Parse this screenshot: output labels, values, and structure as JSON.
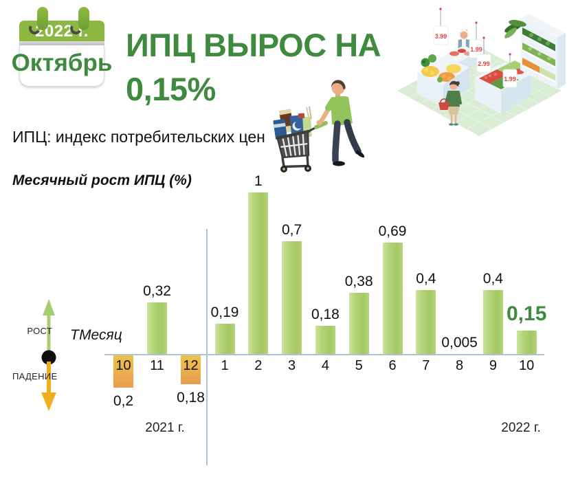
{
  "calendar": {
    "year_label": "2022 г.",
    "month_label": "Октябрь"
  },
  "header": {
    "title_line1": "ИПЦ ВЫРОС НА",
    "title_line2": "0,15%",
    "subtitle": "ИПЦ: индекс потребительских цен"
  },
  "chart": {
    "title": "Месячный рост ИПЦ (%)",
    "axis_label": "ТМесяц",
    "legend_up": "РОСТ",
    "legend_down": "ПАДЕНИЕ",
    "year_left": "2021 г.",
    "year_right": "2022 г."
  },
  "store": {
    "price_tags": [
      "3.99",
      "1.99",
      "2.99",
      "1.99"
    ]
  },
  "colors": {
    "accent_green": "#3e8a3e",
    "calendar_header_green": "#8cb841",
    "bar_green_light": "#cde49e",
    "bar_green_dark": "#a3c961",
    "bar_yellow_light": "#eec24c",
    "bar_yellow_dark": "#e89d4f",
    "axis_blue": "#a9c2de",
    "arrow_up_green": "#a6cd72",
    "arrow_down_orange": "#f3ae1b"
  },
  "chart_data": {
    "type": "bar",
    "title": "Месячный рост ИПЦ (%)",
    "categories": [
      "10",
      "11",
      "12",
      "1",
      "2",
      "3",
      "4",
      "5",
      "6",
      "7",
      "8",
      "9",
      "10"
    ],
    "values": [
      -0.2,
      0.32,
      -0.18,
      0.19,
      1,
      0.7,
      0.18,
      0.38,
      0.69,
      0.4,
      0.005,
      0.4,
      0.15
    ],
    "labels": [
      "0,2",
      "0,32",
      "0,18",
      "0,19",
      "1",
      "0,7",
      "0,18",
      "0,38",
      "0,69",
      "0,4",
      "0,005",
      "0,4",
      "0,15"
    ],
    "years": {
      "left_group": "2021 г.",
      "left_months": [
        "10",
        "11",
        "12"
      ],
      "right_group": "2022 г.",
      "right_months": [
        "1",
        "2",
        "3",
        "4",
        "5",
        "6",
        "7",
        "8",
        "9",
        "10"
      ]
    },
    "highlight_index": 12,
    "positive_meaning": "РОСТ",
    "negative_meaning": "ПАДЕНИЕ",
    "xlabel": "ТМесяц",
    "ylabel": "",
    "ylim": [
      -0.25,
      1.05
    ],
    "unit": "%",
    "grid": false,
    "legend_position": "left-arrows"
  }
}
